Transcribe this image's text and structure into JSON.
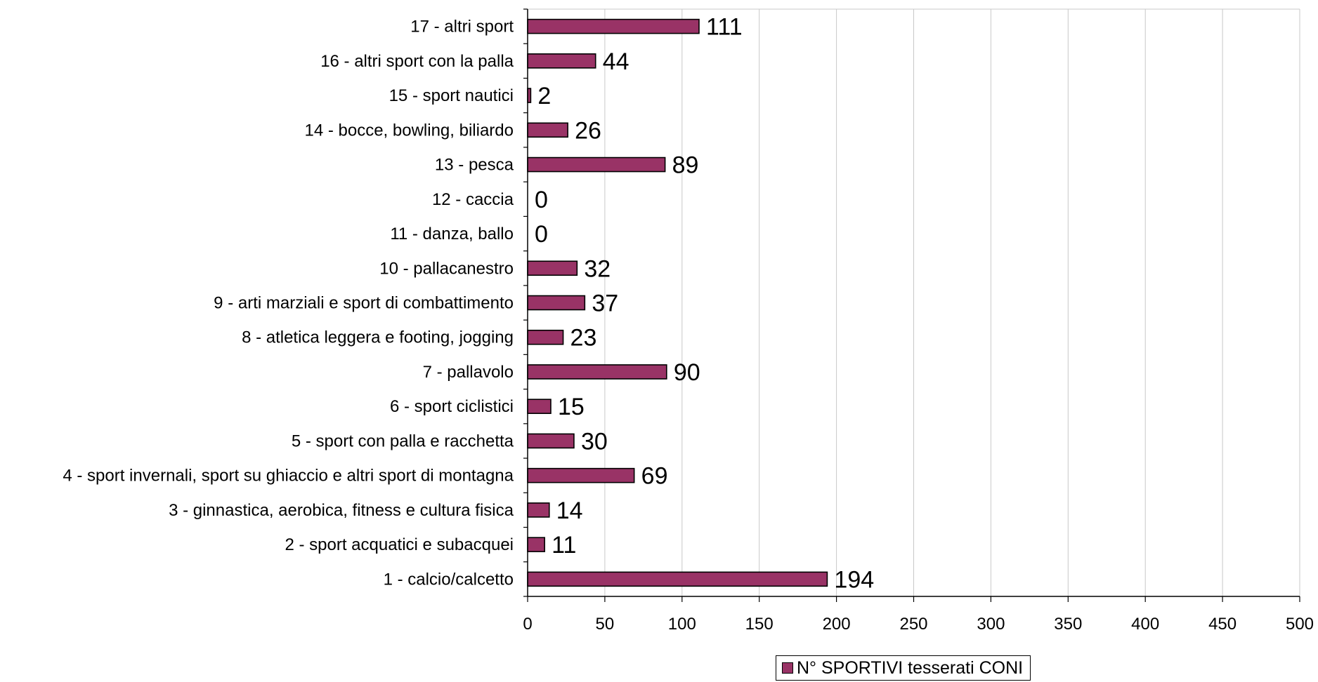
{
  "chart_data": {
    "type": "bar",
    "orientation": "horizontal",
    "categories": [
      "1 - calcio/calcetto",
      "2 - sport acquatici e subacquei",
      "3 - ginnastica, aerobica, fitness e cultura fisica",
      "4 - sport invernali, sport su ghiaccio e altri sport di montagna",
      "5 - sport con palla e racchetta",
      "6 - sport ciclistici",
      "7 - pallavolo",
      "8 - atletica leggera e footing, jogging",
      "9 - arti marziali e sport di combattimento",
      "10 - pallacanestro",
      "11 - danza, ballo",
      "12 - caccia",
      "13 - pesca",
      "14 - bocce, bowling, biliardo",
      "15 - sport nautici",
      "16 - altri sport con la palla",
      "17 - altri sport"
    ],
    "series": [
      {
        "name": "N° SPORTIVI tesserati CONI",
        "values": [
          194,
          11,
          14,
          69,
          30,
          15,
          90,
          23,
          37,
          32,
          0,
          0,
          89,
          26,
          2,
          44,
          111
        ],
        "color": "#993366"
      }
    ],
    "xlim": [
      0,
      500
    ],
    "xticks": [
      0,
      50,
      100,
      150,
      200,
      250,
      300,
      350,
      400,
      450,
      500
    ],
    "grid": true,
    "legend_position": "bottom",
    "data_labels": true
  }
}
